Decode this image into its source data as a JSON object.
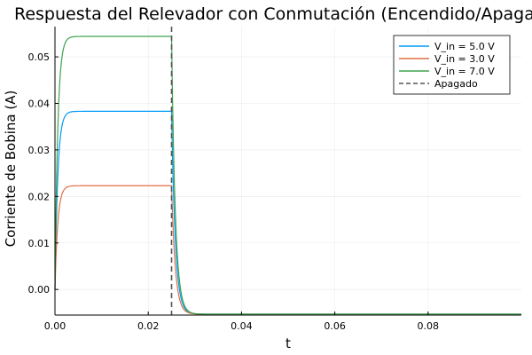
{
  "chart_data": {
    "type": "line",
    "title": "Respuesta del Relevador con Conmutación (Encendido/Apagado)",
    "xlabel": "t",
    "ylabel": "Corriente de Bobina (A)",
    "xlim": [
      0,
      0.1
    ],
    "ylim": [
      -0.0055,
      0.0565
    ],
    "xticks": [
      0.0,
      0.02,
      0.04,
      0.06,
      0.08
    ],
    "xtick_labels": [
      "0.00",
      "0.02",
      "0.04",
      "0.06",
      "0.08"
    ],
    "yticks": [
      0.0,
      0.01,
      0.02,
      0.03,
      0.04,
      0.05
    ],
    "ytick_labels": [
      "0.00",
      "0.01",
      "0.02",
      "0.03",
      "0.04",
      "0.05"
    ],
    "grid": true,
    "legend_position": "top-right",
    "switch_off_time": 0.025,
    "off_level": -0.0053,
    "tau_on": 0.0006,
    "tau_off": 0.0008,
    "series": [
      {
        "name": "V_in = 5.0 V",
        "color": "#009AFA",
        "steady_state": 0.0383
      },
      {
        "name": "V_in = 3.0 V",
        "color": "#E26F46",
        "steady_state": 0.0223
      },
      {
        "name": "V_in = 7.0 V",
        "color": "#3DA44D",
        "steady_state": 0.0544
      }
    ],
    "vline": {
      "name": "Apagado",
      "x": 0.025,
      "color": "#555555",
      "style": "dashed"
    }
  }
}
